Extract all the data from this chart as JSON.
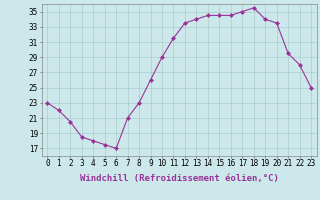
{
  "x": [
    0,
    1,
    2,
    3,
    4,
    5,
    6,
    7,
    8,
    9,
    10,
    11,
    12,
    13,
    14,
    15,
    16,
    17,
    18,
    19,
    20,
    21,
    22,
    23
  ],
  "y": [
    23.0,
    22.0,
    20.5,
    18.5,
    18.0,
    17.5,
    17.0,
    21.0,
    23.0,
    26.0,
    29.0,
    31.5,
    33.5,
    34.0,
    34.5,
    34.5,
    34.5,
    35.0,
    35.5,
    34.0,
    33.5,
    29.5,
    28.0,
    25.0
  ],
  "line_color": "#993399",
  "marker": "D",
  "marker_size": 2.0,
  "bg_color": "#cde8eb",
  "grid_color": "#aacccc",
  "ylabel_ticks": [
    17,
    19,
    21,
    23,
    25,
    27,
    29,
    31,
    33,
    35
  ],
  "xlabel_ticks": [
    0,
    1,
    2,
    3,
    4,
    5,
    6,
    7,
    8,
    9,
    10,
    11,
    12,
    13,
    14,
    15,
    16,
    17,
    18,
    19,
    20,
    21,
    22,
    23
  ],
  "xlabel": "Windchill (Refroidissement éolien,°C)",
  "ylim": [
    16,
    36
  ],
  "xlim": [
    -0.5,
    23.5
  ],
  "tick_fontsize": 5.5,
  "label_fontsize": 6.5
}
